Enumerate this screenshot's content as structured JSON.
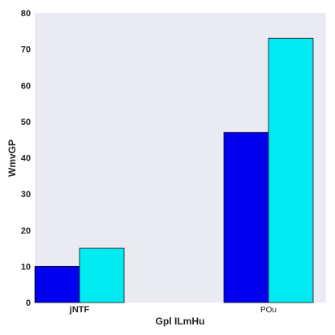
{
  "chart_data": {
    "type": "bar",
    "title": "",
    "xlabel": "Gpl ILmHu",
    "ylabel": "WmvGP",
    "categories": [
      "jNTF",
      "POu"
    ],
    "series": [
      {
        "values": [
          10,
          47
        ],
        "color": "#0000ee"
      },
      {
        "values": [
          15,
          73
        ],
        "color": "#00eaf2"
      }
    ],
    "ylim": [
      0,
      80
    ],
    "yticks": [
      0,
      10,
      20,
      30,
      40,
      50,
      60,
      70,
      80
    ],
    "grid": false,
    "legend": "none",
    "plot_background": "#eaeaf2"
  }
}
